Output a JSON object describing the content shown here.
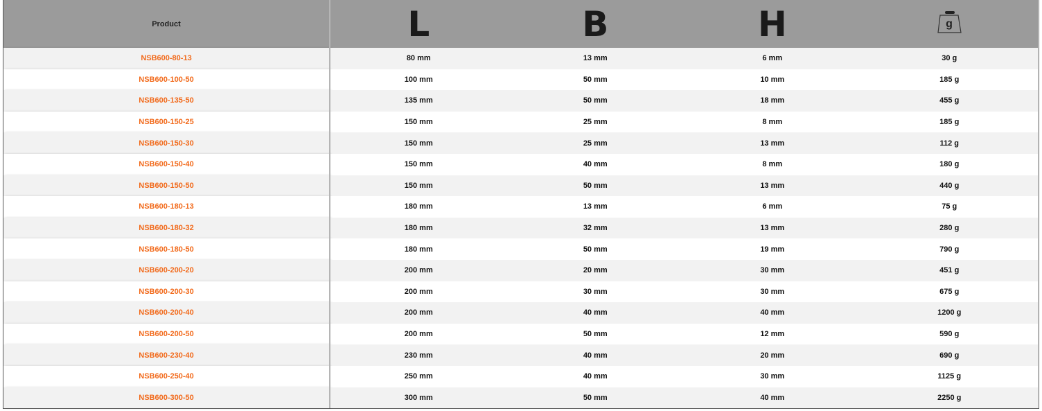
{
  "table": {
    "headers": {
      "product": "Product",
      "length": "L",
      "width": "B",
      "height": "H",
      "weight_icon": "weight-icon",
      "weight_icon_glyph": "g"
    },
    "accent_color": "#f26a1b",
    "rows": [
      {
        "product": "NSB600-80-13",
        "l": "80 mm",
        "b": "13 mm",
        "h": "6 mm",
        "w": "30 g"
      },
      {
        "product": "NSB600-100-50",
        "l": "100 mm",
        "b": "50 mm",
        "h": "10 mm",
        "w": "185 g"
      },
      {
        "product": "NSB600-135-50",
        "l": "135 mm",
        "b": "50 mm",
        "h": "18 mm",
        "w": "455 g"
      },
      {
        "product": "NSB600-150-25",
        "l": "150 mm",
        "b": "25 mm",
        "h": "8 mm",
        "w": "185 g"
      },
      {
        "product": "NSB600-150-30",
        "l": "150 mm",
        "b": "25 mm",
        "h": "13 mm",
        "w": "112 g"
      },
      {
        "product": "NSB600-150-40",
        "l": "150 mm",
        "b": "40 mm",
        "h": "8 mm",
        "w": "180 g"
      },
      {
        "product": "NSB600-150-50",
        "l": "150 mm",
        "b": "50 mm",
        "h": "13 mm",
        "w": "440 g"
      },
      {
        "product": "NSB600-180-13",
        "l": "180 mm",
        "b": "13 mm",
        "h": "6 mm",
        "w": "75 g"
      },
      {
        "product": "NSB600-180-32",
        "l": "180 mm",
        "b": "32 mm",
        "h": "13 mm",
        "w": "280 g"
      },
      {
        "product": "NSB600-180-50",
        "l": "180 mm",
        "b": "50 mm",
        "h": "19 mm",
        "w": "790 g"
      },
      {
        "product": "NSB600-200-20",
        "l": "200 mm",
        "b": "20 mm",
        "h": "30 mm",
        "w": "451 g"
      },
      {
        "product": "NSB600-200-30",
        "l": "200 mm",
        "b": "30 mm",
        "h": "30 mm",
        "w": "675 g"
      },
      {
        "product": "NSB600-200-40",
        "l": "200 mm",
        "b": "40 mm",
        "h": "40 mm",
        "w": "1200 g"
      },
      {
        "product": "NSB600-200-50",
        "l": "200 mm",
        "b": "50 mm",
        "h": "12 mm",
        "w": "590 g"
      },
      {
        "product": "NSB600-230-40",
        "l": "230 mm",
        "b": "40 mm",
        "h": "20 mm",
        "w": "690 g"
      },
      {
        "product": "NSB600-250-40",
        "l": "250 mm",
        "b": "40 mm",
        "h": "30 mm",
        "w": "1125 g"
      },
      {
        "product": "NSB600-300-50",
        "l": "300 mm",
        "b": "50 mm",
        "h": "40 mm",
        "w": "2250 g"
      }
    ]
  }
}
